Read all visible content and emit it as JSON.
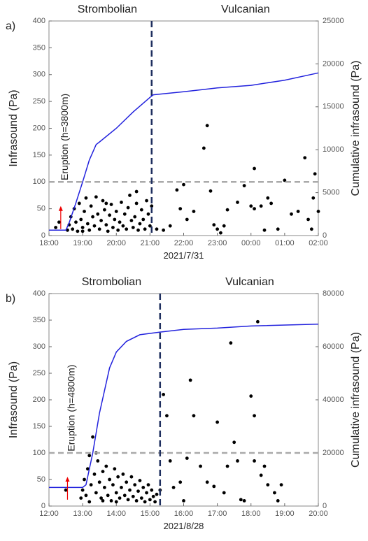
{
  "chart_data": [
    {
      "type": "scatter",
      "panel_label": "a)",
      "xlabel": "2021/7/31",
      "ylabel": "Infrasound (Pa)",
      "y2label": "Cumulative infrasound (Pa)",
      "regions": [
        "Strombolian",
        "Vulcanian"
      ],
      "annotation": "Eruption (h=3800m)",
      "eruption_x": 18.35,
      "xlim": [
        18,
        26
      ],
      "xticks": [
        {
          "value": 18,
          "label": "18:00"
        },
        {
          "value": 19,
          "label": "19:00"
        },
        {
          "value": 20,
          "label": "20:00"
        },
        {
          "value": 21,
          "label": "21:00"
        },
        {
          "value": 22,
          "label": "22:00"
        },
        {
          "value": 23,
          "label": "23:00"
        },
        {
          "value": 24,
          "label": "00:00"
        },
        {
          "value": 25,
          "label": "01:00"
        },
        {
          "value": 26,
          "label": "02:00"
        }
      ],
      "ylim": [
        0,
        400
      ],
      "yticks": [
        0,
        50,
        100,
        150,
        200,
        250,
        300,
        350,
        400
      ],
      "y2lim": [
        0,
        25000
      ],
      "y2ticks": [
        0,
        5000,
        10000,
        15000,
        20000,
        25000
      ],
      "hline": 100,
      "vline": 21.05,
      "scatter": {
        "color": "#000000",
        "x": [
          18.2,
          18.3,
          18.55,
          18.6,
          18.65,
          18.7,
          18.75,
          18.8,
          18.85,
          18.9,
          18.95,
          19.0,
          19.05,
          19.1,
          19.15,
          19.2,
          19.25,
          19.3,
          19.35,
          19.4,
          19.45,
          19.5,
          19.55,
          19.6,
          19.65,
          19.7,
          19.75,
          19.8,
          19.85,
          19.9,
          19.95,
          20.0,
          20.05,
          20.1,
          20.15,
          20.2,
          20.25,
          20.3,
          20.35,
          20.4,
          20.45,
          20.5,
          20.55,
          20.6,
          20.65,
          20.7,
          20.75,
          20.8,
          20.85,
          20.9,
          20.95,
          21.0,
          21.05,
          20.6,
          19.0,
          19.7,
          21.2,
          21.4,
          21.6,
          21.9,
          22.0,
          22.3,
          22.6,
          22.7,
          22.8,
          22.9,
          23.0,
          23.3,
          23.6,
          23.8,
          24.0,
          24.1,
          24.3,
          24.4,
          24.5,
          24.6,
          24.8,
          25.0,
          25.2,
          25.4,
          25.6,
          25.7,
          25.8,
          26.0,
          25.9,
          25.85,
          24.1,
          23.1,
          23.2,
          21.8,
          22.1
        ],
        "values": [
          15,
          25,
          10,
          20,
          35,
          12,
          50,
          25,
          8,
          60,
          30,
          15,
          45,
          70,
          22,
          10,
          55,
          35,
          18,
          72,
          40,
          12,
          28,
          65,
          48,
          20,
          8,
          38,
          58,
          15,
          30,
          45,
          10,
          25,
          62,
          18,
          40,
          12,
          52,
          75,
          28,
          15,
          35,
          60,
          10,
          22,
          48,
          30,
          12,
          65,
          40,
          18,
          55,
          82,
          8,
          60,
          12,
          10,
          18,
          50,
          95,
          45,
          163,
          205,
          83,
          20,
          12,
          48,
          62,
          93,
          55,
          50,
          55,
          10,
          70,
          60,
          12,
          103,
          40,
          45,
          145,
          30,
          12,
          45,
          115,
          70,
          125,
          5,
          18,
          85,
          30
        ]
      },
      "line": {
        "color": "#2222dd",
        "axis": "y2",
        "x": [
          18.0,
          18.5,
          18.6,
          18.8,
          19.0,
          19.2,
          19.4,
          19.5,
          20.0,
          20.5,
          21.0,
          21.1,
          22.0,
          23.0,
          24.0,
          25.0,
          26.0
        ],
        "values": [
          625,
          625,
          1500,
          3800,
          6250,
          8800,
          10600,
          10900,
          12500,
          14400,
          16100,
          16400,
          16750,
          17200,
          17500,
          18100,
          18950
        ]
      }
    },
    {
      "type": "scatter",
      "panel_label": "b)",
      "xlabel": "2021/8/28",
      "ylabel": "Infrasound (Pa)",
      "y2label": "Cumulative infrasound (Pa)",
      "regions": [
        "Strombolian",
        "Vulcanian"
      ],
      "annotation": "Eruption (h=4800m)",
      "eruption_x": 12.55,
      "xlim": [
        12,
        20
      ],
      "xticks": [
        {
          "value": 12,
          "label": "12:00"
        },
        {
          "value": 13,
          "label": "13:00"
        },
        {
          "value": 14,
          "label": "14:00"
        },
        {
          "value": 15,
          "label": "15:00"
        },
        {
          "value": 16,
          "label": "16:00"
        },
        {
          "value": 17,
          "label": "17:00"
        },
        {
          "value": 18,
          "label": "18:00"
        },
        {
          "value": 19,
          "label": "19:00"
        },
        {
          "value": 20,
          "label": "20:00"
        }
      ],
      "ylim": [
        0,
        400
      ],
      "yticks": [
        0,
        50,
        100,
        150,
        200,
        250,
        300,
        350,
        400
      ],
      "y2lim": [
        0,
        80000
      ],
      "y2ticks": [
        0,
        20000,
        40000,
        60000,
        80000
      ],
      "hline": 100,
      "vline": 15.3,
      "scatter": {
        "color": "#000000",
        "x": [
          12.5,
          12.95,
          13.0,
          13.05,
          13.1,
          13.15,
          13.2,
          13.25,
          13.3,
          13.35,
          13.4,
          13.45,
          13.5,
          13.55,
          13.6,
          13.65,
          13.7,
          13.75,
          13.8,
          13.85,
          13.9,
          13.95,
          14.0,
          14.05,
          14.1,
          14.15,
          14.2,
          14.25,
          14.3,
          14.35,
          14.4,
          14.45,
          14.5,
          14.55,
          14.6,
          14.65,
          14.7,
          14.75,
          14.8,
          14.85,
          14.9,
          14.95,
          15.0,
          15.05,
          15.1,
          15.15,
          15.2,
          13.4,
          13.2,
          13.6,
          14.0,
          15.4,
          15.5,
          15.6,
          15.7,
          15.9,
          16.2,
          16.3,
          16.1,
          16.5,
          16.7,
          16.9,
          17.0,
          17.2,
          17.4,
          17.5,
          17.6,
          17.3,
          17.7,
          17.8,
          18.0,
          18.1,
          18.2,
          18.3,
          18.1,
          18.4,
          18.7,
          18.8,
          18.9,
          18.5,
          15.3,
          16.0
        ],
        "values": [
          30,
          15,
          30,
          50,
          20,
          70,
          95,
          40,
          130,
          60,
          25,
          85,
          45,
          15,
          65,
          35,
          75,
          20,
          50,
          10,
          40,
          70,
          25,
          55,
          15,
          35,
          60,
          20,
          45,
          12,
          30,
          55,
          18,
          40,
          10,
          28,
          48,
          15,
          35,
          8,
          25,
          40,
          12,
          30,
          18,
          8,
          22,
          100,
          8,
          10,
          8,
          210,
          170,
          85,
          35,
          45,
          237,
          170,
          90,
          75,
          45,
          37,
          158,
          25,
          307,
          120,
          85,
          75,
          12,
          10,
          207,
          170,
          347,
          58,
          85,
          75,
          25,
          10,
          40,
          40,
          30,
          10
        ]
      },
      "line": {
        "color": "#2222dd",
        "axis": "y2",
        "x": [
          12.0,
          13.0,
          13.1,
          13.3,
          13.5,
          13.8,
          14.0,
          14.3,
          14.7,
          15.3,
          16.0,
          17.0,
          18.0,
          20.0
        ],
        "values": [
          7000,
          7000,
          8000,
          20000,
          35000,
          52000,
          58000,
          62000,
          64500,
          65500,
          66500,
          67000,
          67800,
          68500
        ]
      }
    }
  ]
}
